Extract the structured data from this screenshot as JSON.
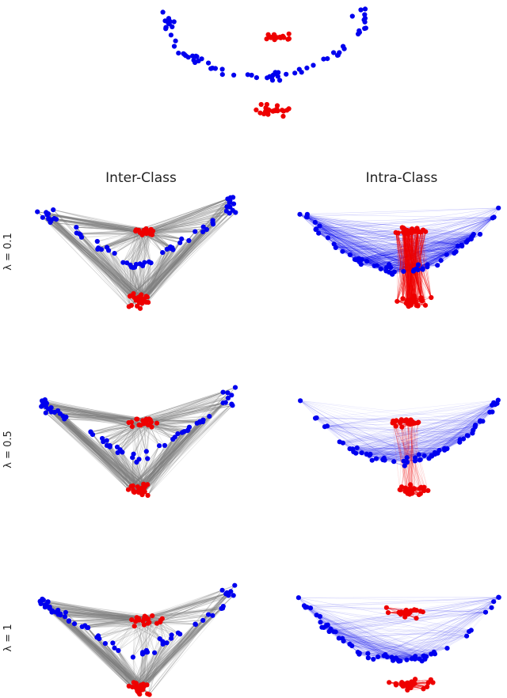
{
  "chart_data": {
    "type": "scatter",
    "column_titles": [
      "Inter-Class",
      "Intra-Class"
    ],
    "row_labels": [
      "λ = 0.1",
      "λ = 0.5",
      "λ = 1"
    ],
    "classes": [
      {
        "name": "",
        "color": "#0000ee"
      },
      {
        "name": "",
        "color": "#ee0000"
      }
    ],
    "edge_colors": {
      "inter": "#808080",
      "intra_blue": "#0000ee",
      "intra_red": "#ee0000"
    },
    "grid": false,
    "axes_visible": false
  }
}
